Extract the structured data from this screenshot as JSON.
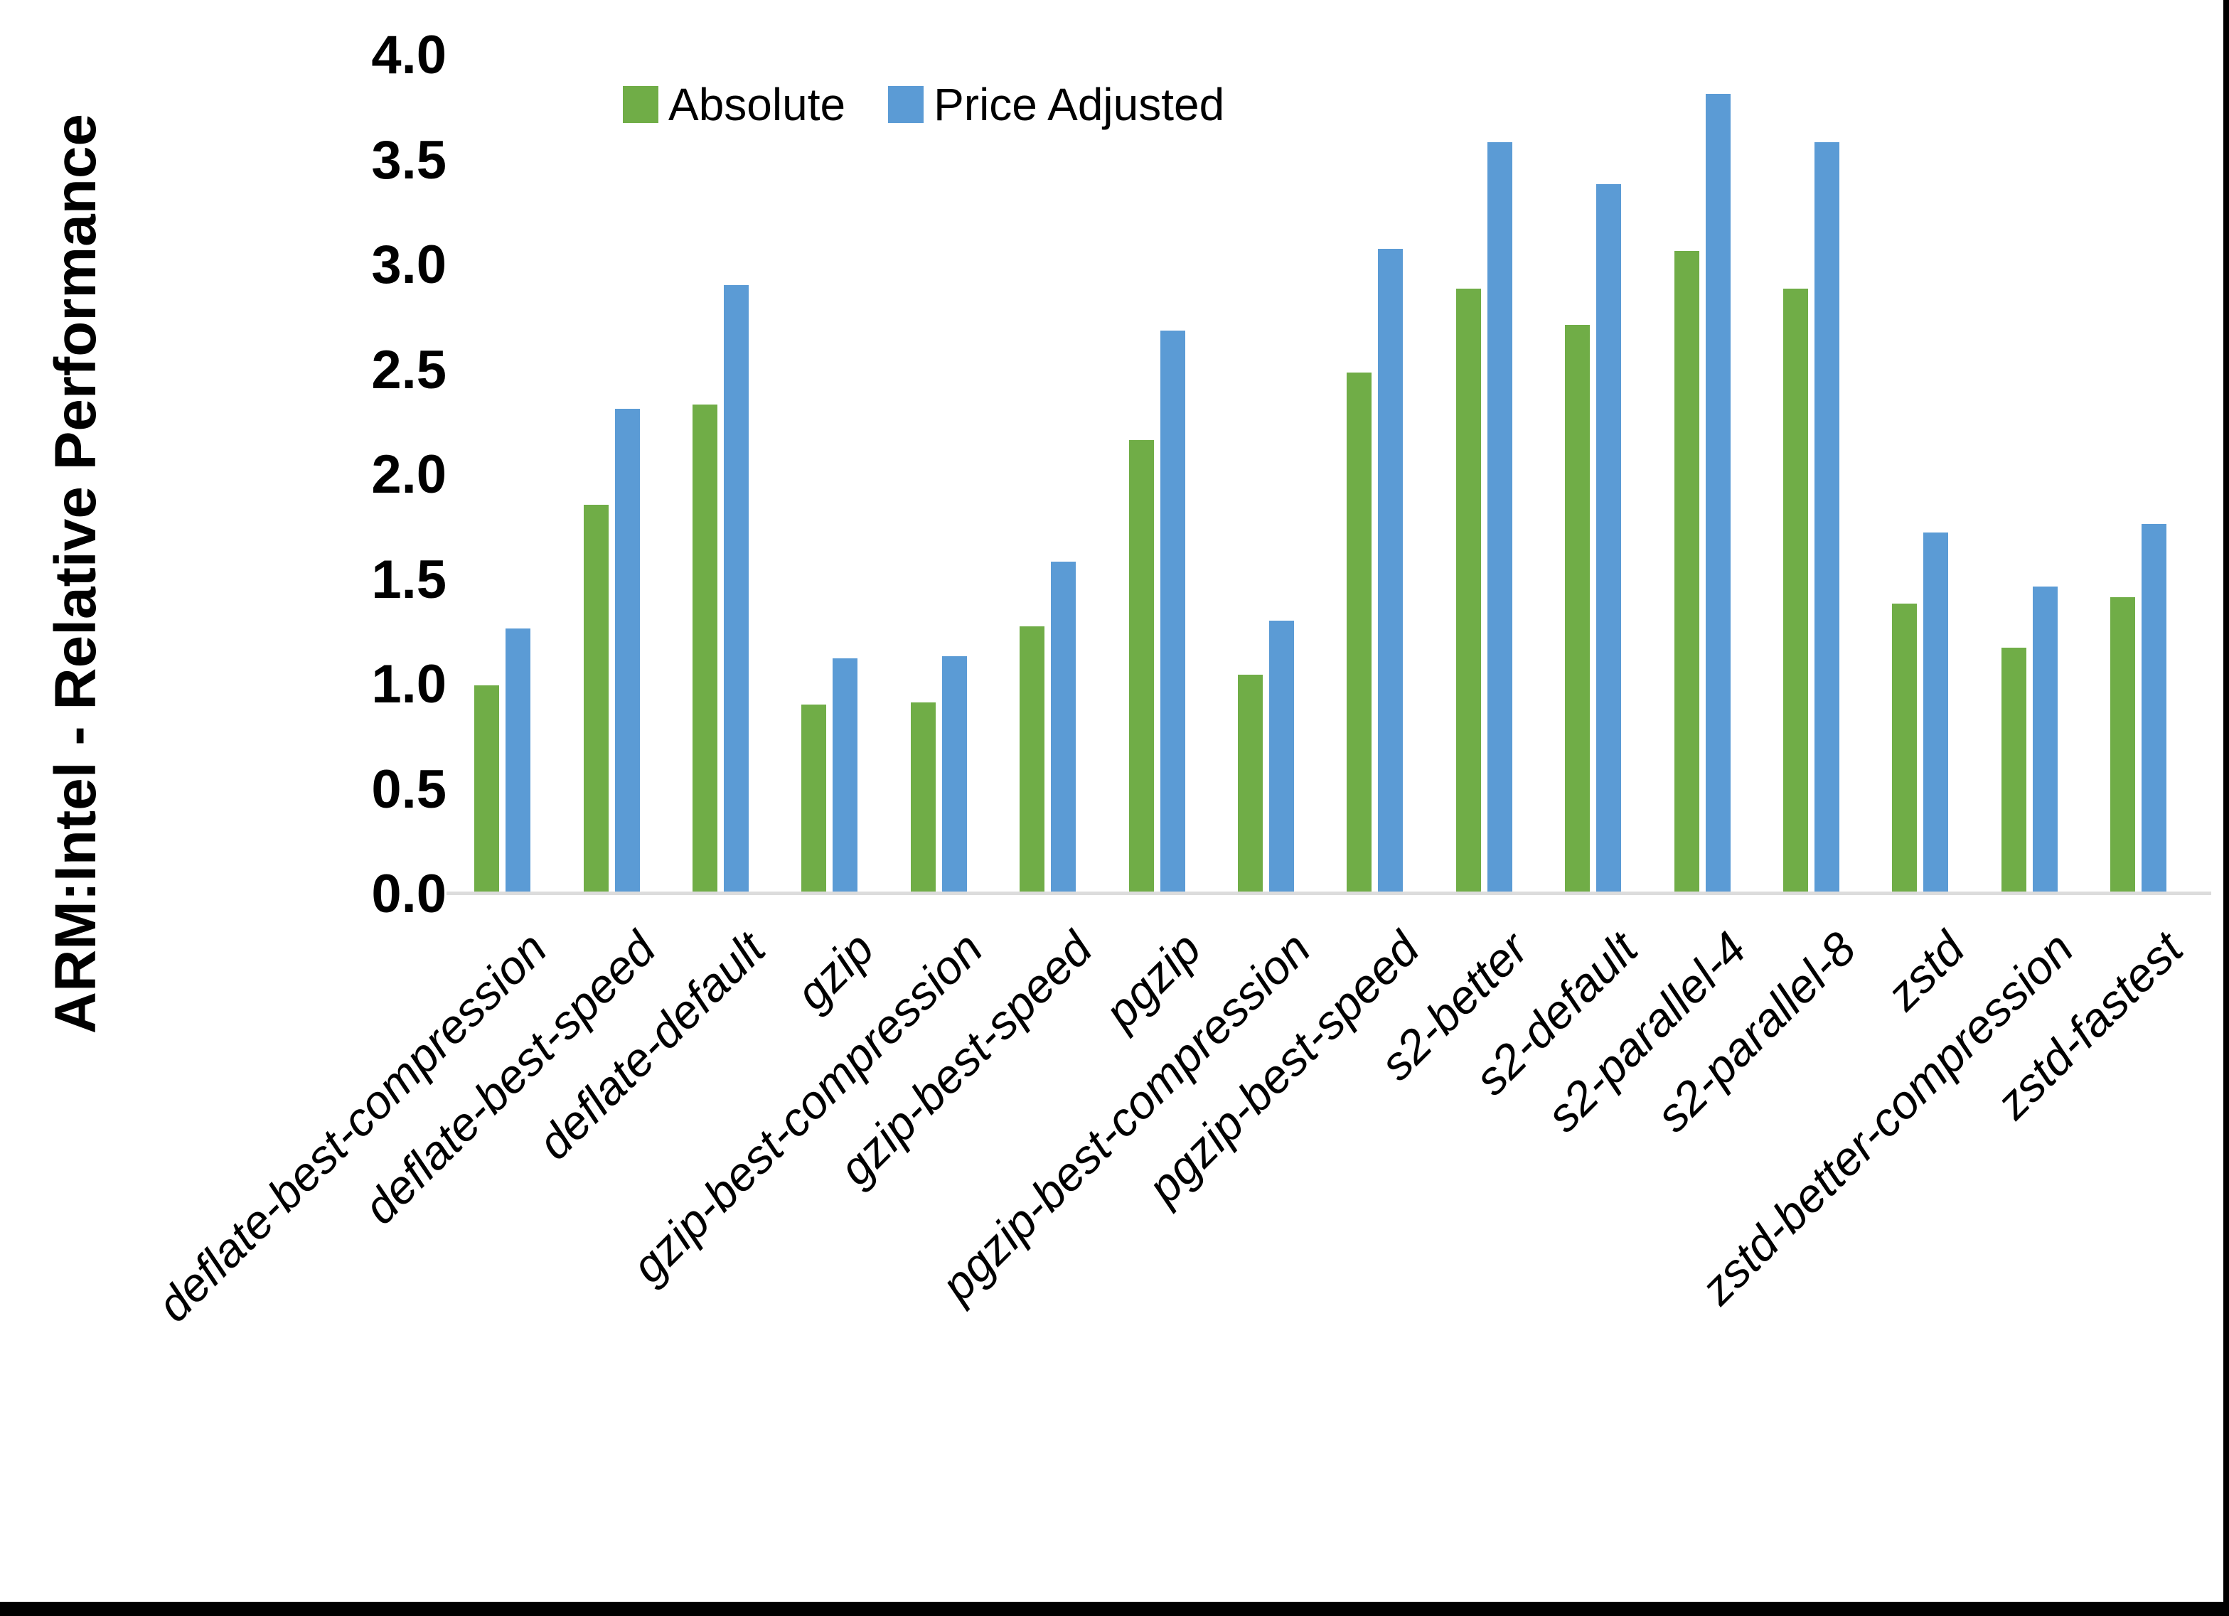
{
  "chart_data": {
    "type": "bar",
    "title": "",
    "ylabel": "ARM:Intel - Relative Performance",
    "xlabel": "",
    "ylim": [
      0.0,
      4.0
    ],
    "ytick_step": 0.5,
    "ytick_labels": [
      "0.0",
      "0.5",
      "1.0",
      "1.5",
      "2.0",
      "2.5",
      "3.0",
      "3.5",
      "4.0"
    ],
    "grid": false,
    "legend_position": "top-center",
    "categories": [
      "deflate-best-compression",
      "deflate-best-speed",
      "deflate-default",
      "gzip",
      "gzip-best-compression",
      "gzip-best-speed",
      "pgzip",
      "pgzip-best-compression",
      "pgzip-best-speed",
      "s2-better",
      "s2-default",
      "s2-parallel-4",
      "s2-parallel-8",
      "zstd",
      "zstd-better-compression",
      "zstd-fastest"
    ],
    "series": [
      {
        "name": "Absolute",
        "color": "#70AD47",
        "values": [
          0.99,
          1.85,
          2.33,
          0.9,
          0.91,
          1.27,
          2.16,
          1.04,
          2.48,
          2.88,
          2.71,
          3.06,
          2.88,
          1.38,
          1.17,
          1.41
        ]
      },
      {
        "name": "Price Adjusted",
        "color": "#5B9BD5",
        "values": [
          1.26,
          2.31,
          2.9,
          1.12,
          1.13,
          1.58,
          2.68,
          1.3,
          3.07,
          3.58,
          3.38,
          3.81,
          3.58,
          1.72,
          1.46,
          1.76
        ]
      }
    ],
    "axis_line_color": "#dcdcdc",
    "text_color": "#000000"
  }
}
